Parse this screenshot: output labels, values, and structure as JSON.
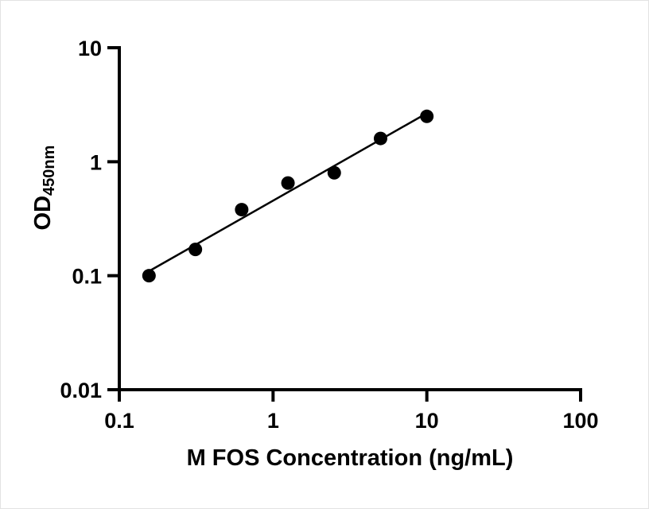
{
  "page": {
    "background_color": "#ffffff"
  },
  "chart_data": {
    "type": "scatter",
    "title": "",
    "x": [
      0.156,
      0.3125,
      0.625,
      1.25,
      2.5,
      5,
      10
    ],
    "y": [
      0.1,
      0.17,
      0.38,
      0.65,
      0.8,
      1.6,
      2.5
    ],
    "xlabel": "M FOS Concentration (ng/mL)",
    "ylabel": "OD450nm",
    "ylabel_main": "OD",
    "ylabel_sub": "450nm",
    "xscale": "log",
    "yscale": "log",
    "xlim": [
      0.1,
      100
    ],
    "ylim": [
      0.01,
      10
    ],
    "x_ticks": [
      0.1,
      1,
      10,
      100
    ],
    "x_tick_labels": [
      "0.1",
      "1",
      "10",
      "100"
    ],
    "y_ticks": [
      0.01,
      0.1,
      1,
      10
    ],
    "y_tick_labels": [
      "0.01",
      "0.1",
      "1",
      "10"
    ],
    "grid": false,
    "legend": false,
    "trendline": true,
    "marker_color": "#000000",
    "line_color": "#000000",
    "axis_color": "#000000"
  }
}
